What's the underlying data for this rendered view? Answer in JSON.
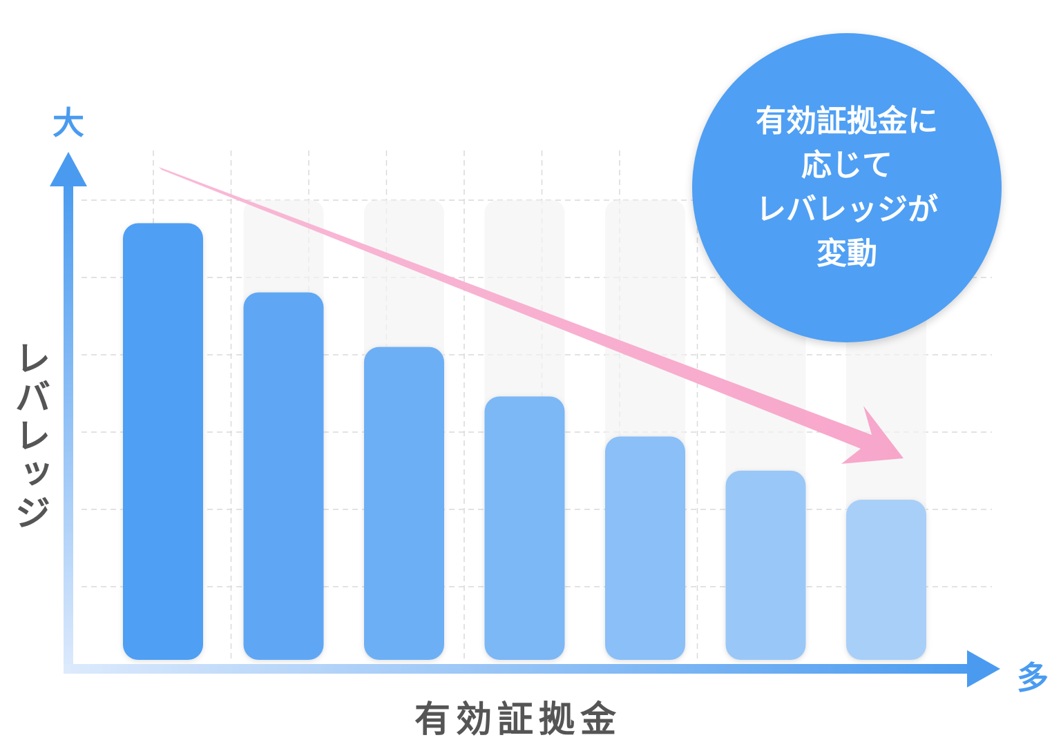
{
  "chart_data": {
    "type": "bar",
    "title": "",
    "xlabel": "有効証拠金",
    "ylabel": "レバレッジ",
    "y_high_label": "大",
    "x_high_label": "多",
    "categories": [
      "",
      "",
      "",
      "",
      "",
      "",
      ""
    ],
    "values": [
      6.0,
      5.05,
      4.3,
      3.62,
      3.07,
      2.6,
      2.2
    ],
    "ylim": [
      0,
      7
    ],
    "grid": true,
    "bar_color_start": "#4f9ff4",
    "bar_color_end": "#a8cff8",
    "trend_arrow_color": "#f7a2c8",
    "axis_color": "#4a9bf0",
    "callout": {
      "lines": [
        "有効証拠金に",
        "応じて",
        "レバレッジが",
        "変動"
      ],
      "color": "#4f9ff4"
    }
  }
}
